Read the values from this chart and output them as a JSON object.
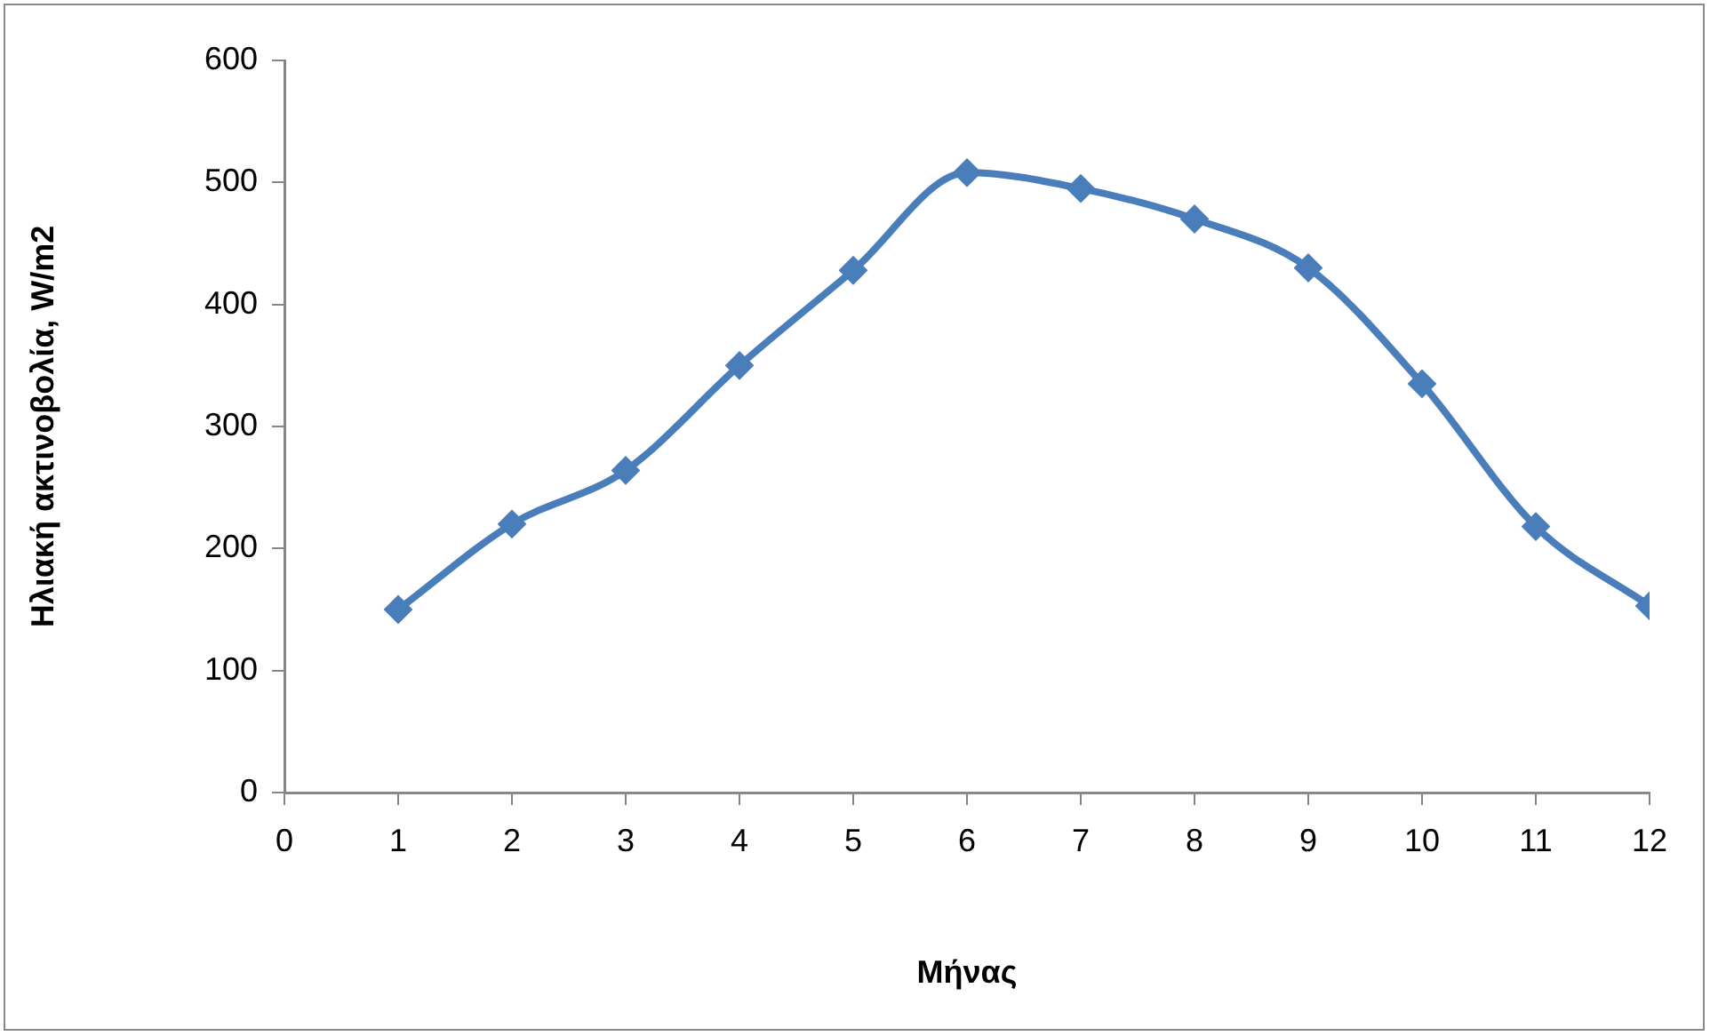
{
  "chart_data": {
    "type": "line",
    "xlabel": "Μήνας",
    "ylabel": "Ηλιακή ακτινοβολία, W/m2",
    "x": [
      1,
      2,
      3,
      4,
      5,
      6,
      7,
      8,
      9,
      10,
      11,
      12
    ],
    "series": [
      {
        "color": "#4a7ebb",
        "values": [
          150,
          220,
          264,
          350,
          428,
          508,
          495,
          470,
          430,
          335,
          218,
          153
        ]
      }
    ],
    "xlim": [
      0,
      12
    ],
    "xticks": [
      0,
      1,
      2,
      3,
      4,
      5,
      6,
      7,
      8,
      9,
      10,
      11,
      12
    ],
    "ylim": [
      0,
      600
    ],
    "yticks": [
      0,
      100,
      200,
      300,
      400,
      500,
      600
    ],
    "marker": "diamond",
    "line_style": "solid"
  }
}
